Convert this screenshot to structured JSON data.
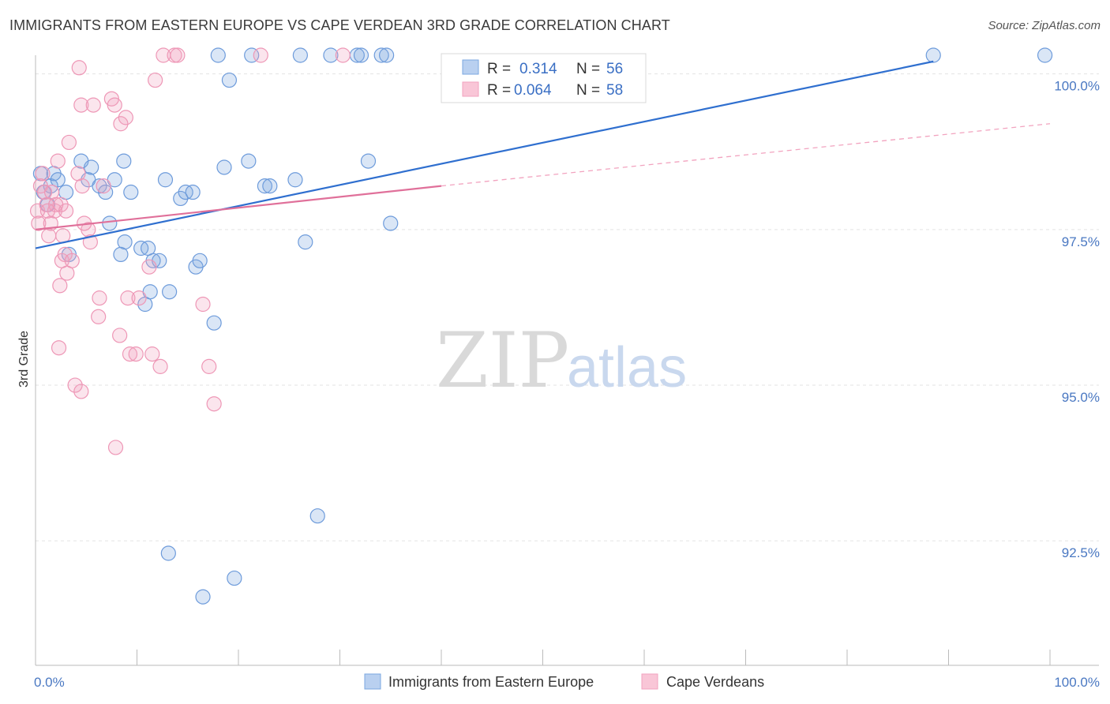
{
  "header": {
    "title": "IMMIGRANTS FROM EASTERN EUROPE VS CAPE VERDEAN 3RD GRADE CORRELATION CHART",
    "source": "Source: ZipAtlas.com"
  },
  "watermark": {
    "part1": "ZIP",
    "part2": "atlas"
  },
  "legend": {
    "rows": [
      {
        "r_label": "R =",
        "r_value": "0.314",
        "n_label": "N =",
        "n_value": "56"
      },
      {
        "r_label": "R =",
        "r_value": "0.064",
        "n_label": "N =",
        "n_value": "58"
      }
    ]
  },
  "bottom_legend": {
    "items": [
      "Immigrants from Eastern Europe",
      "Cape Verdeans"
    ]
  },
  "chart_data": {
    "type": "scatter",
    "title": "IMMIGRANTS FROM EASTERN EUROPE VS CAPE VERDEAN 3RD GRADE CORRELATION CHART",
    "xlabel": "",
    "ylabel": "3rd Grade",
    "xlim": [
      0,
      100
    ],
    "ylim": [
      90.5,
      100.3
    ],
    "x_tick_labels": [
      "0.0%",
      "100.0%"
    ],
    "y_ticks": [
      100.0,
      97.5,
      95.0,
      92.5
    ],
    "y_tick_labels": [
      "100.0%",
      "97.5%",
      "95.0%",
      "92.5%"
    ],
    "colors": {
      "blue": "#7ba7e0",
      "blue_line": "#2f6fcf",
      "pink": "#f2a3bf",
      "pink_line": "#e0709a"
    },
    "series": [
      {
        "name": "Immigrants from Eastern Europe",
        "r": 0.314,
        "n": 56,
        "trend": {
          "x": [
            0,
            88.5
          ],
          "y": [
            97.2,
            100.2
          ]
        },
        "points": [
          [
            0.5,
            98.4
          ],
          [
            0.8,
            98.1
          ],
          [
            1.2,
            97.9
          ],
          [
            1.5,
            98.2
          ],
          [
            1.8,
            98.4
          ],
          [
            2.2,
            98.3
          ],
          [
            3,
            98.1
          ],
          [
            4.5,
            98.6
          ],
          [
            5.2,
            98.3
          ],
          [
            5.5,
            98.5
          ],
          [
            6.3,
            98.2
          ],
          [
            6.9,
            98.1
          ],
          [
            7.3,
            97.6
          ],
          [
            8.7,
            98.6
          ],
          [
            9.4,
            98.1
          ],
          [
            7.8,
            98.3
          ],
          [
            3.3,
            97.1
          ],
          [
            8.4,
            97.1
          ],
          [
            8.8,
            97.3
          ],
          [
            10.4,
            97.2
          ],
          [
            11.1,
            97.2
          ],
          [
            11.6,
            97.0
          ],
          [
            12.2,
            97.0
          ],
          [
            12.8,
            98.3
          ],
          [
            13.2,
            96.5
          ],
          [
            14.3,
            98.0
          ],
          [
            14.8,
            98.1
          ],
          [
            15.5,
            98.1
          ],
          [
            15.8,
            96.9
          ],
          [
            16.2,
            97.0
          ],
          [
            17.6,
            96.0
          ],
          [
            18.6,
            98.5
          ],
          [
            19.1,
            99.9
          ],
          [
            21.0,
            98.6
          ],
          [
            22.6,
            98.2
          ],
          [
            23.1,
            98.2
          ],
          [
            25.6,
            98.3
          ],
          [
            26.6,
            97.3
          ],
          [
            27.8,
            92.9
          ],
          [
            32.8,
            98.6
          ],
          [
            35.0,
            97.6
          ],
          [
            10.8,
            96.3
          ],
          [
            11.3,
            96.5
          ],
          [
            13.1,
            92.3
          ],
          [
            16.5,
            91.6
          ],
          [
            19.6,
            91.9
          ],
          [
            18.0,
            100.3
          ],
          [
            21.3,
            100.3
          ],
          [
            26.1,
            100.3
          ],
          [
            29.1,
            100.3
          ],
          [
            31.7,
            100.3
          ],
          [
            32.1,
            100.3
          ],
          [
            34.1,
            100.3
          ],
          [
            34.6,
            100.3
          ],
          [
            88.5,
            100.3
          ],
          [
            99.5,
            100.3
          ]
        ]
      },
      {
        "name": "Cape Verdeans",
        "r": 0.064,
        "n": 58,
        "trend": {
          "x": [
            0,
            40
          ],
          "y": [
            97.5,
            98.2
          ],
          "dashed_extension": {
            "x": [
              40,
              100
            ],
            "y": [
              98.2,
              99.2
            ]
          }
        },
        "points": [
          [
            0.2,
            97.8
          ],
          [
            0.3,
            97.6
          ],
          [
            0.5,
            98.2
          ],
          [
            0.7,
            98.4
          ],
          [
            0.9,
            98.1
          ],
          [
            1.1,
            97.9
          ],
          [
            1.3,
            97.4
          ],
          [
            1.5,
            97.6
          ],
          [
            1.6,
            98.1
          ],
          [
            1.9,
            97.8
          ],
          [
            2.2,
            98.6
          ],
          [
            2.5,
            97.9
          ],
          [
            2.6,
            97.0
          ],
          [
            2.9,
            97.1
          ],
          [
            3.1,
            96.8
          ],
          [
            3.3,
            98.9
          ],
          [
            4.2,
            98.4
          ],
          [
            4.6,
            98.2
          ],
          [
            4.3,
            100.1
          ],
          [
            4.5,
            99.5
          ],
          [
            5.2,
            97.5
          ],
          [
            5.4,
            97.3
          ],
          [
            5.7,
            99.5
          ],
          [
            6.2,
            96.1
          ],
          [
            6.3,
            96.4
          ],
          [
            6.7,
            98.2
          ],
          [
            7.5,
            99.6
          ],
          [
            7.8,
            99.5
          ],
          [
            8.3,
            95.8
          ],
          [
            8.4,
            99.2
          ],
          [
            8.9,
            99.3
          ],
          [
            9.1,
            96.4
          ],
          [
            9.3,
            95.5
          ],
          [
            9.9,
            95.5
          ],
          [
            10.2,
            96.4
          ],
          [
            11.2,
            96.9
          ],
          [
            11.5,
            95.5
          ],
          [
            11.8,
            99.9
          ],
          [
            12.3,
            95.3
          ],
          [
            12.6,
            100.3
          ],
          [
            13.7,
            100.3
          ],
          [
            14.0,
            100.3
          ],
          [
            16.5,
            96.3
          ],
          [
            17.1,
            95.3
          ],
          [
            17.6,
            94.7
          ],
          [
            22.2,
            100.3
          ],
          [
            30.3,
            100.3
          ],
          [
            3.0,
            97.8
          ],
          [
            2.0,
            97.9
          ],
          [
            4.8,
            97.6
          ],
          [
            3.6,
            97.0
          ],
          [
            3.9,
            95.0
          ],
          [
            4.5,
            94.9
          ],
          [
            2.7,
            97.4
          ],
          [
            1.2,
            97.8
          ],
          [
            2.4,
            96.6
          ],
          [
            2.3,
            95.6
          ],
          [
            7.9,
            94.0
          ]
        ]
      }
    ]
  }
}
